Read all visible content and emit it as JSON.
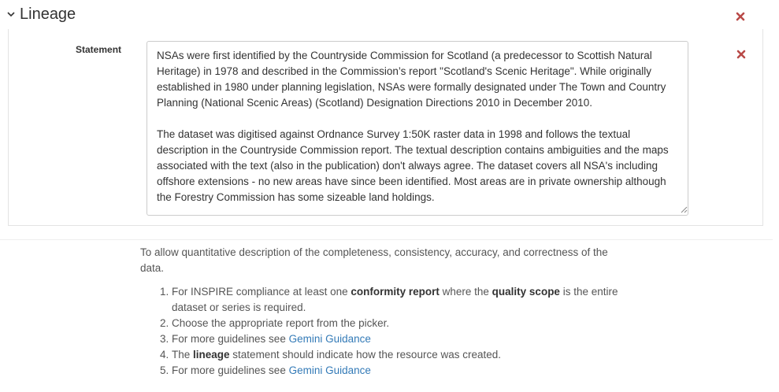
{
  "section": {
    "title": "Lineage"
  },
  "statement": {
    "label": "Statement",
    "value": "NSAs were first identified by the Countryside Commission for Scotland (a predecessor to Scottish Natural Heritage) in 1978 and described in the Commission’s report \"Scotland's Scenic Heritage\". While originally established in 1980 under planning legislation, NSAs were formally designated under The Town and Country Planning (National Scenic Areas) (Scotland) Designation Directions 2010 in December 2010.\n\nThe dataset was digitised against Ordnance Survey 1:50K raster data in 1998 and follows the textual description in the Countryside Commission report. The textual description contains ambiguities and the maps associated with the text (also in the publication) don't always agree. The dataset covers all NSA's including offshore extensions - no new areas have since been identified. Most areas are in private ownership although the Forestry Commission has some sizeable land holdings."
  },
  "help": {
    "intro": "To allow quantitative description of the completeness, consistency, accuracy, and correctness of the data.",
    "items": [
      {
        "before": "For INSPIRE compliance at least one ",
        "bold1": "conformity report",
        "middle": " where the ",
        "bold2": "quality scope",
        "after": " is the entire dataset or series is required."
      },
      {
        "text": "Choose the appropriate report from the picker."
      },
      {
        "before": "For more guidelines see ",
        "link": "Gemini Guidance"
      },
      {
        "before": "The ",
        "bold": "lineage",
        "after": " statement should indicate how the resource was created."
      },
      {
        "before": "For more guidelines see ",
        "link": "Gemini Guidance"
      }
    ]
  },
  "colors": {
    "remove": "#b94a48",
    "link": "#337ab7"
  },
  "icons": {
    "collapse": "chevron-down-icon",
    "remove": "remove-icon"
  }
}
